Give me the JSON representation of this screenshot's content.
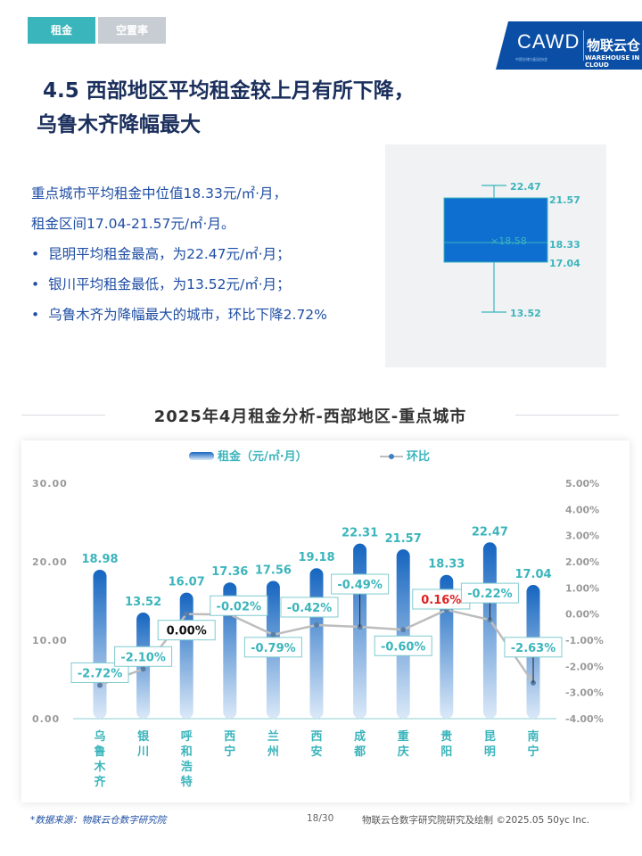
{
  "tabs": [
    "租金",
    "空置率"
  ],
  "logo": {
    "brand": "CAWD",
    "cn_name": "物联云仓",
    "en_name": "WAREHOUSE IN CLOUD",
    "sub": "中国仓储与配送协会"
  },
  "title": {
    "line1": "4.5 西部地区平均租金较上月有所下降，",
    "line2": "乌鲁木齐降幅最大"
  },
  "summary": {
    "line1": "重点城市平均租金中位值18.33元/㎡·月，",
    "line2": "租金区间17.04-21.57元/㎡·月。",
    "bullets": [
      "昆明平均租金最高，为22.47元/㎡·月；",
      "银川平均租金最低，为13.52元/㎡·月；",
      "乌鲁木齐为降幅最大的城市，环比下降2.72%"
    ]
  },
  "boxplot": {
    "max_label": "22.47",
    "q3_label": "21.57",
    "mean_label": "×18.58",
    "median_label": "18.33",
    "q1_label": "17.04",
    "min_label": "13.52",
    "max": 22.47,
    "q3": 21.57,
    "mean": 18.58,
    "median": 18.33,
    "q1": 17.04,
    "min": 13.52,
    "box_color": "#0e6fd0"
  },
  "section_title": "2025年4月租金分析-西部地区-重点城市",
  "chart_data": {
    "type": "bar",
    "legend": [
      "租金（元/㎡·月）",
      "环比"
    ],
    "categories": [
      "乌鲁木齐",
      "银川",
      "呼和浩特",
      "西宁",
      "兰州",
      "西安",
      "成都",
      "重庆",
      "贵阳",
      "昆明",
      "南宁"
    ],
    "series": [
      {
        "name": "租金（元/㎡·月）",
        "axis": "left",
        "values": [
          18.98,
          13.52,
          16.07,
          17.36,
          17.56,
          19.18,
          22.31,
          21.57,
          18.33,
          22.47,
          17.04
        ]
      },
      {
        "name": "环比",
        "axis": "right",
        "type": "line",
        "values": [
          -2.72,
          -2.1,
          0.0,
          -0.02,
          -0.79,
          -0.42,
          -0.49,
          -0.6,
          0.16,
          -0.22,
          -2.63
        ],
        "labels": [
          "-2.72%",
          "-2.10%",
          "0.00%",
          "-0.02%",
          "-0.79%",
          "-0.42%",
          "-0.49%",
          "-0.60%",
          "0.16%",
          "-0.22%",
          "-2.63%"
        ]
      }
    ],
    "left_ticks": [
      "30.00",
      "20.00",
      "10.00",
      "0.00"
    ],
    "right_ticks": [
      "5.00%",
      "4.00%",
      "3.00%",
      "2.00%",
      "1.00%",
      "0.00%",
      "-1.00%",
      "-2.00%",
      "-3.00%",
      "-4.00%"
    ],
    "ylim_left": [
      0,
      30
    ],
    "ylim_right": [
      -4,
      5
    ],
    "colors": {
      "bar_top": "#1565c0",
      "bar_bottom": "#dbe9f8",
      "line": "#bdbdbd",
      "label": "#3bb5bc",
      "positive": "#e02020",
      "neutral": "#111111"
    }
  },
  "footer": {
    "source": "*数据来源：物联云仓数字研究院",
    "page": "18/30",
    "copyright": "物联云仓数字研究院研究及绘制  ©2025.05 50yc Inc."
  }
}
